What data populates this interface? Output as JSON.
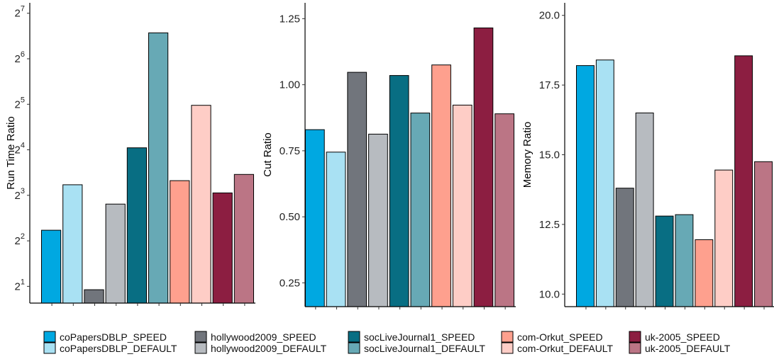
{
  "legend": {
    "items": [
      {
        "label": "coPapersDBLP_SPEED",
        "color": "#00A8E1"
      },
      {
        "label": "coPapersDBLP_DEFAULT",
        "color": "#A9E1F3"
      },
      {
        "label": "hollywood2009_SPEED",
        "color": "#71757C"
      },
      {
        "label": "hollywood2009_DEFAULT",
        "color": "#B7BBC0"
      },
      {
        "label": "socLiveJournal1_SPEED",
        "color": "#086E83"
      },
      {
        "label": "socLiveJournal1_DEFAULT",
        "color": "#67A9B5"
      },
      {
        "label": "com-Orkut_SPEED",
        "color": "#FEA08E"
      },
      {
        "label": "com-Orkut_DEFAULT",
        "color": "#FECDC6"
      },
      {
        "label": "uk-2005_SPEED",
        "color": "#8C1E41"
      },
      {
        "label": "uk-2005_DEFAULT",
        "color": "#BB7585"
      }
    ]
  },
  "chart_data": [
    {
      "type": "bar",
      "ylabel": "Run Time Ratio",
      "yscale": "log2",
      "ylim": [
        1.55,
        150
      ],
      "yticks": [
        {
          "base": "2",
          "exp": "1",
          "value": 2
        },
        {
          "base": "2",
          "exp": "2",
          "value": 4
        },
        {
          "base": "2",
          "exp": "3",
          "value": 8
        },
        {
          "base": "2",
          "exp": "4",
          "value": 16
        },
        {
          "base": "2",
          "exp": "5",
          "value": 32
        },
        {
          "base": "2",
          "exp": "6",
          "value": 64
        },
        {
          "base": "2",
          "exp": "7",
          "value": 128
        }
      ],
      "categories": [
        "coPapersDBLP_SPEED",
        "coPapersDBLP_DEFAULT",
        "hollywood2009_SPEED",
        "hollywood2009_DEFAULT",
        "socLiveJournal1_SPEED",
        "socLiveJournal1_DEFAULT",
        "com-Orkut_SPEED",
        "com-Orkut_DEFAULT",
        "uk-2005_SPEED",
        "uk-2005_DEFAULT"
      ],
      "values": [
        4.7,
        9.4,
        1.9,
        7.0,
        16.5,
        95.0,
        10.0,
        31.5,
        8.3,
        11.0
      ]
    },
    {
      "type": "bar",
      "ylabel": "Cut Ratio",
      "yscale": "linear",
      "ylim": [
        0.16,
        1.31
      ],
      "yticks": [
        {
          "label": "0.25",
          "value": 0.25
        },
        {
          "label": "0.50",
          "value": 0.5
        },
        {
          "label": "0.75",
          "value": 0.75
        },
        {
          "label": "1.00",
          "value": 1.0
        },
        {
          "label": "1.25",
          "value": 1.25
        }
      ],
      "categories": [
        "coPapersDBLP_SPEED",
        "coPapersDBLP_DEFAULT",
        "hollywood2009_SPEED",
        "hollywood2009_DEFAULT",
        "socLiveJournal1_SPEED",
        "socLiveJournal1_DEFAULT",
        "com-Orkut_SPEED",
        "com-Orkut_DEFAULT",
        "uk-2005_SPEED",
        "uk-2005_DEFAULT"
      ],
      "values": [
        0.83,
        0.745,
        1.047,
        0.813,
        1.035,
        0.893,
        1.075,
        0.923,
        1.215,
        0.89
      ]
    },
    {
      "type": "bar",
      "ylabel": "Memory Ratio",
      "yscale": "linear",
      "ylim": [
        9.55,
        20.45
      ],
      "yticks": [
        {
          "label": "10.0",
          "value": 10.0
        },
        {
          "label": "12.5",
          "value": 12.5
        },
        {
          "label": "15.0",
          "value": 15.0
        },
        {
          "label": "17.5",
          "value": 17.5
        },
        {
          "label": "20.0",
          "value": 20.0
        }
      ],
      "categories": [
        "coPapersDBLP_SPEED",
        "coPapersDBLP_DEFAULT",
        "hollywood2009_SPEED",
        "hollywood2009_DEFAULT",
        "socLiveJournal1_SPEED",
        "socLiveJournal1_DEFAULT",
        "com-Orkut_SPEED",
        "com-Orkut_DEFAULT",
        "uk-2005_SPEED",
        "uk-2005_DEFAULT"
      ],
      "values": [
        18.2,
        18.4,
        13.8,
        16.5,
        12.8,
        12.85,
        11.95,
        14.45,
        18.55,
        14.75
      ]
    }
  ]
}
